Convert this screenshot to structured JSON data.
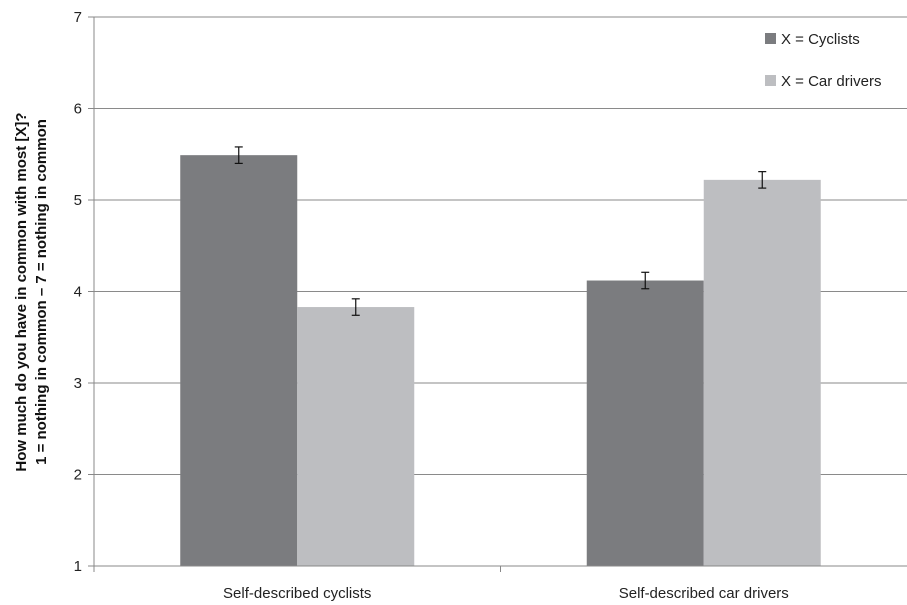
{
  "chart_data": {
    "type": "bar",
    "ylabel_lines": [
      "How much do you have in common with most [X]?",
      "1 = nothing in common – 7 = nothing in common"
    ],
    "xlabel": "",
    "ylim": [
      1,
      7
    ],
    "yticks": [
      "1",
      "2",
      "3",
      "4",
      "5",
      "6",
      "7"
    ],
    "grid": true,
    "legend_position": "top-right",
    "categories": [
      "Self-described cyclists",
      "Self-described car drivers"
    ],
    "series": [
      {
        "name": "X = Cyclists",
        "color": "#7b7c7f",
        "values": [
          5.49,
          4.12
        ],
        "errors": [
          0.09,
          0.09
        ]
      },
      {
        "name": "X = Car drivers",
        "color": "#bdbec1",
        "values": [
          3.83,
          5.22
        ],
        "errors": [
          0.09,
          0.09
        ]
      }
    ]
  }
}
